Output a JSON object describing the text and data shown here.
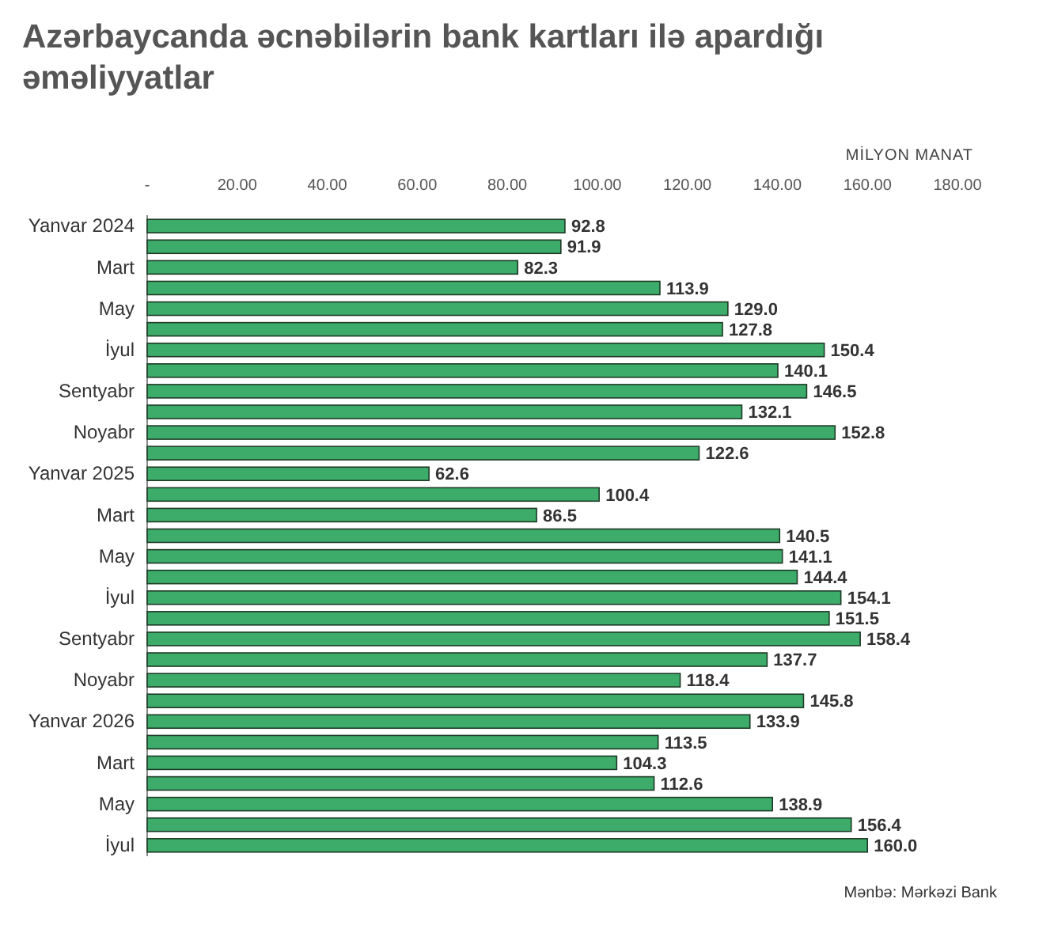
{
  "chart_data": {
    "type": "bar",
    "orientation": "horizontal",
    "title": "Azərbaycanda əcnəbilərin bank kartları ilə apardığı əməliyyatlar",
    "xlabel": "MİLYON MANAT",
    "categories": [
      "Yanvar 2024",
      null,
      "Mart",
      null,
      "May",
      null,
      "İyul",
      null,
      "Sentyabr",
      null,
      "Noyabr",
      null,
      "Yanvar 2025",
      null,
      "Mart",
      null,
      "May",
      null,
      "İyul",
      null,
      "Sentyabr",
      null,
      "Noyabr",
      null,
      "Yanvar 2026",
      null,
      "Mart",
      null,
      "May",
      null,
      "İyul"
    ],
    "values": [
      92.8,
      91.9,
      82.3,
      113.9,
      129.0,
      127.8,
      150.4,
      140.1,
      146.5,
      132.1,
      152.8,
      122.6,
      62.6,
      100.4,
      86.5,
      140.5,
      141.1,
      144.4,
      154.1,
      151.5,
      158.4,
      137.7,
      118.4,
      145.8,
      133.9,
      113.5,
      104.3,
      112.6,
      138.9,
      156.4,
      160.0
    ],
    "value_labels": [
      "92.8",
      "91.9",
      "82.3",
      "113.9",
      "129.0",
      "127.8",
      "150.4",
      "140.1",
      "146.5",
      "132.1",
      "152.8",
      "122.6",
      "62.6",
      "100.4",
      "86.5",
      "140.5",
      "141.1",
      "144.4",
      "154.1",
      "151.5",
      "158.4",
      "137.7",
      "118.4",
      "145.8",
      "133.9",
      "113.5",
      "104.3",
      "112.6",
      "138.9",
      "156.4",
      "160.0"
    ],
    "color": "#3dab6a",
    "xlim": [
      0,
      180
    ],
    "xticks": [
      {
        "value": 0,
        "label": "-"
      },
      {
        "value": 20,
        "label": "20.00"
      },
      {
        "value": 40,
        "label": "40.00"
      },
      {
        "value": 60,
        "label": "60.00"
      },
      {
        "value": 80,
        "label": "80.00"
      },
      {
        "value": 100,
        "label": "100.00"
      },
      {
        "value": 120,
        "label": "120.00"
      },
      {
        "value": 140,
        "label": "140.00"
      },
      {
        "value": 160,
        "label": "160.00"
      },
      {
        "value": 180,
        "label": "180.00"
      }
    ],
    "grid": false,
    "annotations": [
      "Mənbə: Mərkəzi Bank"
    ]
  }
}
